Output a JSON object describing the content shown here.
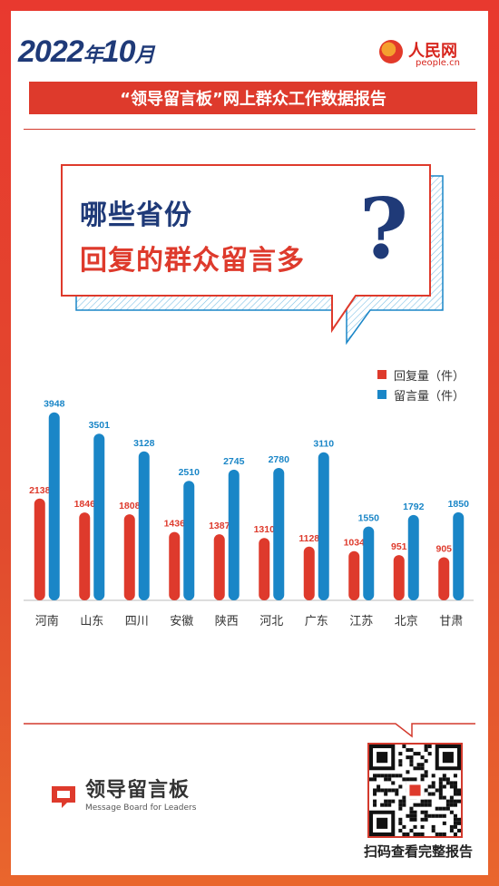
{
  "header": {
    "year": "2022",
    "year_unit": "年",
    "month": "10",
    "month_unit": "月",
    "logo_text": "人民网",
    "logo_url_text": "people.cn",
    "banner": "“领导留言板”网上群众工作数据报告"
  },
  "bubble": {
    "line1": "哪些省份",
    "line2": "回复的群众留言多",
    "qmark": "?"
  },
  "footer": {
    "brand_cn": "领导留言板",
    "brand_en": "Message Board for Leaders",
    "qr_caption": "扫码查看完整报告"
  },
  "colors": {
    "red": "#de3a2c",
    "blue": "#1a86c7",
    "navy": "#1f3a78"
  },
  "chart_data": {
    "type": "bar",
    "categories": [
      "河南",
      "山东",
      "四川",
      "安徽",
      "陕西",
      "河北",
      "广东",
      "江苏",
      "北京",
      "甘肃"
    ],
    "series": [
      {
        "name": "回复量（件）",
        "values": [
          2138,
          1846,
          1808,
          1436,
          1387,
          1310,
          1128,
          1034,
          951,
          905
        ]
      },
      {
        "name": "留言量（件）",
        "values": [
          3948,
          3501,
          3128,
          2510,
          2745,
          2780,
          3110,
          1550,
          1792,
          1850
        ]
      }
    ],
    "legend_position": "top-right",
    "grid": false
  }
}
